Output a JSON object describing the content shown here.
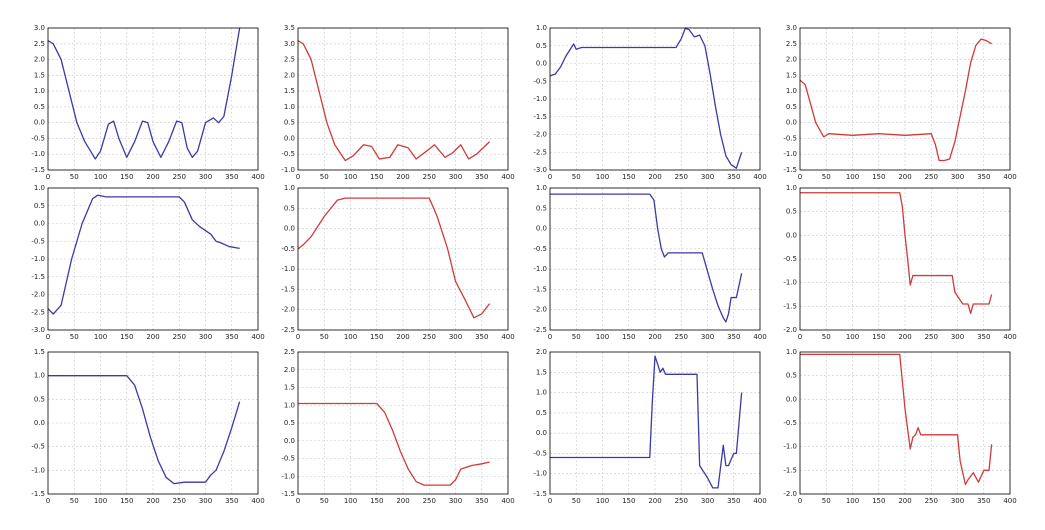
{
  "chart_data": [
    {
      "type": "line",
      "x": [
        0,
        10,
        25,
        40,
        55,
        70,
        90,
        100,
        115,
        125,
        135,
        150,
        165,
        180,
        190,
        200,
        215,
        230,
        245,
        255,
        265,
        275,
        285,
        300,
        315,
        325,
        335,
        350,
        365
      ],
      "series": [
        {
          "color": "#3a3aa8",
          "values": [
            2.6,
            2.5,
            2.0,
            1.0,
            0.0,
            -0.6,
            -1.15,
            -0.9,
            -0.05,
            0.05,
            -0.5,
            -1.1,
            -0.6,
            0.05,
            0.0,
            -0.6,
            -1.1,
            -0.6,
            0.05,
            0.0,
            -0.8,
            -1.1,
            -0.9,
            0.0,
            0.15,
            0.0,
            0.2,
            1.5,
            3.0
          ]
        }
      ],
      "xlim": [
        0,
        400
      ],
      "xticks": [
        0,
        50,
        100,
        150,
        200,
        250,
        300,
        350,
        400
      ],
      "ylim": [
        -1.5,
        3.0
      ],
      "yticks": [
        -1.5,
        {
          "value": -1,
          "label": "-1.0"
        },
        -0.5,
        {
          "value": 0,
          "label": "0.0"
        },
        0.5,
        {
          "value": 1,
          "label": "1.0"
        },
        1.5,
        {
          "value": 2,
          "label": "2.0"
        },
        2.5,
        {
          "value": 3,
          "label": "3.0"
        }
      ],
      "grid": true
    },
    {
      "type": "line",
      "x": [
        0,
        10,
        25,
        40,
        55,
        70,
        90,
        105,
        125,
        140,
        155,
        175,
        190,
        210,
        225,
        245,
        260,
        280,
        295,
        310,
        325,
        340,
        365
      ],
      "series": [
        {
          "color": "#d03a3a",
          "values": [
            3.1,
            3.0,
            2.5,
            1.5,
            0.5,
            -0.2,
            -0.7,
            -0.55,
            -0.2,
            -0.25,
            -0.65,
            -0.6,
            -0.2,
            -0.3,
            -0.65,
            -0.4,
            -0.2,
            -0.6,
            -0.45,
            -0.2,
            -0.65,
            -0.5,
            -0.1
          ]
        }
      ],
      "xlim": [
        0,
        400
      ],
      "xticks": [
        0,
        50,
        100,
        150,
        200,
        250,
        300,
        350,
        400
      ],
      "ylim": [
        -1.0,
        3.5
      ],
      "yticks": [
        {
          "value": -1,
          "label": "-1.0"
        },
        -0.5,
        {
          "value": 0,
          "label": "0.0"
        },
        0.5,
        {
          "value": 1,
          "label": "1.0"
        },
        1.5,
        {
          "value": 2,
          "label": "2.0"
        },
        2.5,
        {
          "value": 3,
          "label": "3.0"
        },
        3.5
      ],
      "grid": true
    },
    {
      "type": "line",
      "x": [
        0,
        10,
        20,
        30,
        45,
        50,
        60,
        100,
        150,
        200,
        240,
        250,
        258,
        265,
        275,
        285,
        295,
        305,
        315,
        325,
        335,
        345,
        355,
        365
      ],
      "series": [
        {
          "color": "#3a3aa8",
          "values": [
            -0.35,
            -0.3,
            -0.1,
            0.2,
            0.55,
            0.4,
            0.45,
            0.45,
            0.45,
            0.45,
            0.45,
            0.7,
            1.0,
            0.95,
            0.75,
            0.8,
            0.5,
            -0.3,
            -1.2,
            -2.0,
            -2.6,
            -2.85,
            -2.95,
            -2.5
          ]
        }
      ],
      "xlim": [
        0,
        400
      ],
      "xticks": [
        0,
        50,
        100,
        150,
        200,
        250,
        300,
        350,
        400
      ],
      "ylim": [
        -3.0,
        1.0
      ],
      "yticks": [
        {
          "value": -3,
          "label": "-3.0"
        },
        -2.5,
        {
          "value": -2,
          "label": "-2.0"
        },
        -1.5,
        {
          "value": -1,
          "label": "-1.0"
        },
        -0.5,
        {
          "value": 0,
          "label": "0.0"
        },
        0.5,
        {
          "value": 1,
          "label": "1.0"
        }
      ],
      "grid": true
    },
    {
      "type": "line",
      "x": [
        0,
        10,
        20,
        30,
        40,
        45,
        55,
        100,
        150,
        200,
        250,
        258,
        265,
        275,
        285,
        295,
        305,
        315,
        325,
        335,
        345,
        355,
        365
      ],
      "series": [
        {
          "color": "#d03a3a",
          "values": [
            1.35,
            1.2,
            0.6,
            0.0,
            -0.3,
            -0.45,
            -0.35,
            -0.4,
            -0.35,
            -0.4,
            -0.35,
            -0.7,
            -1.2,
            -1.2,
            -1.15,
            -0.6,
            0.2,
            1.0,
            1.9,
            2.45,
            2.65,
            2.6,
            2.5
          ]
        }
      ],
      "xlim": [
        0,
        400
      ],
      "xticks": [
        0,
        50,
        100,
        150,
        200,
        250,
        300,
        350,
        400
      ],
      "ylim": [
        -1.5,
        3.0
      ],
      "yticks": [
        -1.5,
        {
          "value": -1,
          "label": "-1.0"
        },
        -0.5,
        {
          "value": 0,
          "label": "0.0"
        },
        0.5,
        {
          "value": 1,
          "label": "1.0"
        },
        1.5,
        {
          "value": 2,
          "label": "2.0"
        },
        2.5,
        {
          "value": 3,
          "label": "3.0"
        }
      ],
      "grid": true
    },
    {
      "type": "line",
      "x": [
        0,
        10,
        25,
        45,
        65,
        85,
        95,
        110,
        150,
        200,
        250,
        260,
        275,
        290,
        300,
        310,
        320,
        330,
        345,
        365
      ],
      "series": [
        {
          "color": "#3a3aa8",
          "values": [
            -2.4,
            -2.55,
            -2.3,
            -1.0,
            0.0,
            0.7,
            0.8,
            0.75,
            0.75,
            0.75,
            0.75,
            0.6,
            0.1,
            -0.1,
            -0.2,
            -0.3,
            -0.5,
            -0.55,
            -0.65,
            -0.7
          ]
        }
      ],
      "xlim": [
        0,
        400
      ],
      "xticks": [
        0,
        50,
        100,
        150,
        200,
        250,
        300,
        350,
        400
      ],
      "ylim": [
        -3.0,
        1.0
      ],
      "yticks": [
        {
          "value": -3,
          "label": "-3.0"
        },
        -2.5,
        {
          "value": -2,
          "label": "-2.0"
        },
        -1.5,
        {
          "value": -1,
          "label": "-1.0"
        },
        -0.5,
        {
          "value": 0,
          "label": "0.0"
        },
        0.5,
        {
          "value": 1,
          "label": "1.0"
        }
      ],
      "grid": true
    },
    {
      "type": "line",
      "x": [
        0,
        10,
        25,
        50,
        75,
        90,
        150,
        200,
        250,
        265,
        285,
        300,
        320,
        335,
        350,
        365
      ],
      "series": [
        {
          "color": "#d03a3a",
          "values": [
            -0.5,
            -0.4,
            -0.2,
            0.3,
            0.7,
            0.75,
            0.75,
            0.75,
            0.75,
            0.3,
            -0.5,
            -1.3,
            -1.8,
            -2.2,
            -2.1,
            -1.85
          ]
        }
      ],
      "xlim": [
        0,
        400
      ],
      "xticks": [
        0,
        50,
        100,
        150,
        200,
        250,
        300,
        350,
        400
      ],
      "ylim": [
        -2.5,
        1.0
      ],
      "yticks": [
        -2.5,
        {
          "value": -2,
          "label": "-2.0"
        },
        -1.5,
        {
          "value": -1,
          "label": "-1.0"
        },
        -0.5,
        {
          "value": 0,
          "label": "0.0"
        },
        0.5,
        {
          "value": 1,
          "label": "1.0"
        }
      ],
      "grid": true
    },
    {
      "type": "line",
      "x": [
        0,
        100,
        190,
        198,
        205,
        212,
        218,
        225,
        260,
        270,
        290,
        310,
        320,
        330,
        335,
        340,
        345,
        355,
        365
      ],
      "series": [
        {
          "color": "#3a3aa8",
          "values": [
            0.85,
            0.85,
            0.85,
            0.7,
            0.0,
            -0.5,
            -0.7,
            -0.6,
            -0.6,
            -0.6,
            -0.6,
            -1.5,
            -1.9,
            -2.2,
            -2.3,
            -2.1,
            -1.7,
            -1.7,
            -1.1
          ]
        }
      ],
      "xlim": [
        0,
        400
      ],
      "xticks": [
        0,
        50,
        100,
        150,
        200,
        250,
        300,
        350,
        400
      ],
      "ylim": [
        -2.5,
        1.0
      ],
      "yticks": [
        -2.5,
        {
          "value": -2,
          "label": "-2.0"
        },
        -1.5,
        {
          "value": -1,
          "label": "-1.0"
        },
        -0.5,
        {
          "value": 0,
          "label": "0.0"
        },
        0.5,
        {
          "value": 1,
          "label": "1.0"
        }
      ],
      "grid": true
    },
    {
      "type": "line",
      "x": [
        0,
        100,
        190,
        195,
        200,
        205,
        210,
        215,
        220,
        290,
        295,
        310,
        320,
        325,
        330,
        340,
        360,
        365
      ],
      "series": [
        {
          "color": "#d03a3a",
          "values": [
            0.9,
            0.9,
            0.9,
            0.6,
            0.0,
            -0.5,
            -1.05,
            -0.85,
            -0.85,
            -0.85,
            -1.2,
            -1.45,
            -1.45,
            -1.65,
            -1.45,
            -1.45,
            -1.45,
            -1.25
          ]
        }
      ],
      "xlim": [
        0,
        400
      ],
      "xticks": [
        0,
        50,
        100,
        150,
        200,
        250,
        300,
        350,
        400
      ],
      "ylim": [
        -2.0,
        1.0
      ],
      "yticks": [
        {
          "value": -2,
          "label": "-2.0"
        },
        -1.5,
        {
          "value": -1,
          "label": "-1.0"
        },
        -0.5,
        {
          "value": 0,
          "label": "0.0"
        },
        0.5,
        {
          "value": 1,
          "label": "1.0"
        }
      ],
      "grid": true
    },
    {
      "type": "line",
      "x": [
        0,
        100,
        150,
        165,
        180,
        195,
        210,
        225,
        240,
        260,
        280,
        300,
        310,
        320,
        335,
        350,
        365
      ],
      "series": [
        {
          "color": "#3a3aa8",
          "values": [
            1.0,
            1.0,
            1.0,
            0.8,
            0.3,
            -0.3,
            -0.8,
            -1.15,
            -1.28,
            -1.25,
            -1.25,
            -1.25,
            -1.1,
            -1.0,
            -0.6,
            -0.1,
            0.45
          ]
        }
      ],
      "xlim": [
        0,
        400
      ],
      "xticks": [
        0,
        50,
        100,
        150,
        200,
        250,
        300,
        350,
        400
      ],
      "ylim": [
        -1.5,
        1.5
      ],
      "yticks": [
        -1.5,
        {
          "value": -1,
          "label": "-1.0"
        },
        -0.5,
        {
          "value": 0,
          "label": "0.0"
        },
        0.5,
        {
          "value": 1,
          "label": "1.0"
        },
        1.5
      ],
      "grid": true
    },
    {
      "type": "line",
      "x": [
        0,
        100,
        150,
        165,
        180,
        195,
        210,
        225,
        240,
        260,
        290,
        300,
        310,
        330,
        350,
        365
      ],
      "series": [
        {
          "color": "#d03a3a",
          "values": [
            1.05,
            1.05,
            1.05,
            0.8,
            0.3,
            -0.3,
            -0.8,
            -1.15,
            -1.25,
            -1.25,
            -1.25,
            -1.1,
            -0.8,
            -0.7,
            -0.65,
            -0.6
          ]
        }
      ],
      "xlim": [
        0,
        400
      ],
      "xticks": [
        0,
        50,
        100,
        150,
        200,
        250,
        300,
        350,
        400
      ],
      "ylim": [
        -1.5,
        2.5
      ],
      "yticks": [
        -1.5,
        {
          "value": -1,
          "label": "-1.0"
        },
        -0.5,
        {
          "value": 0,
          "label": "0.0"
        },
        0.5,
        {
          "value": 1,
          "label": "1.0"
        },
        1.5,
        {
          "value": 2,
          "label": "2.0"
        },
        2.5
      ],
      "grid": true
    },
    {
      "type": "line",
      "x": [
        0,
        100,
        190,
        195,
        200,
        205,
        210,
        215,
        220,
        280,
        285,
        300,
        310,
        320,
        330,
        335,
        340,
        350,
        355,
        365
      ],
      "series": [
        {
          "color": "#3a3aa8",
          "values": [
            -0.6,
            -0.6,
            -0.6,
            0.8,
            1.9,
            1.7,
            1.5,
            1.6,
            1.45,
            1.45,
            -0.8,
            -1.1,
            -1.35,
            -1.35,
            -0.3,
            -0.8,
            -0.8,
            -0.5,
            -0.5,
            1.0
          ]
        }
      ],
      "xlim": [
        0,
        400
      ],
      "xticks": [
        0,
        50,
        100,
        150,
        200,
        250,
        300,
        350,
        400
      ],
      "ylim": [
        -1.5,
        2.0
      ],
      "yticks": [
        -1.5,
        {
          "value": -1,
          "label": "-1.0"
        },
        -0.5,
        {
          "value": 0,
          "label": "0.0"
        },
        0.5,
        {
          "value": 1,
          "label": "1.0"
        },
        1.5,
        {
          "value": 2,
          "label": "2.0"
        }
      ],
      "grid": true
    },
    {
      "type": "line",
      "x": [
        0,
        100,
        190,
        200,
        210,
        215,
        220,
        225,
        230,
        300,
        305,
        315,
        320,
        330,
        340,
        350,
        355,
        360,
        365
      ],
      "series": [
        {
          "color": "#d03a3a",
          "values": [
            0.95,
            0.95,
            0.95,
            -0.2,
            -1.05,
            -0.8,
            -0.75,
            -0.6,
            -0.75,
            -0.75,
            -1.3,
            -1.8,
            -1.7,
            -1.55,
            -1.75,
            -1.5,
            -1.5,
            -1.5,
            -0.95
          ]
        }
      ],
      "xlim": [
        0,
        400
      ],
      "xticks": [
        0,
        50,
        100,
        150,
        200,
        250,
        300,
        350,
        400
      ],
      "ylim": [
        -2.0,
        1.0
      ],
      "yticks": [
        {
          "value": -2,
          "label": "-2.0"
        },
        -1.5,
        {
          "value": -1,
          "label": "-1.0"
        },
        -0.5,
        {
          "value": 0,
          "label": "0.0"
        },
        0.5,
        {
          "value": 1,
          "label": "1.0"
        }
      ],
      "grid": true
    }
  ]
}
